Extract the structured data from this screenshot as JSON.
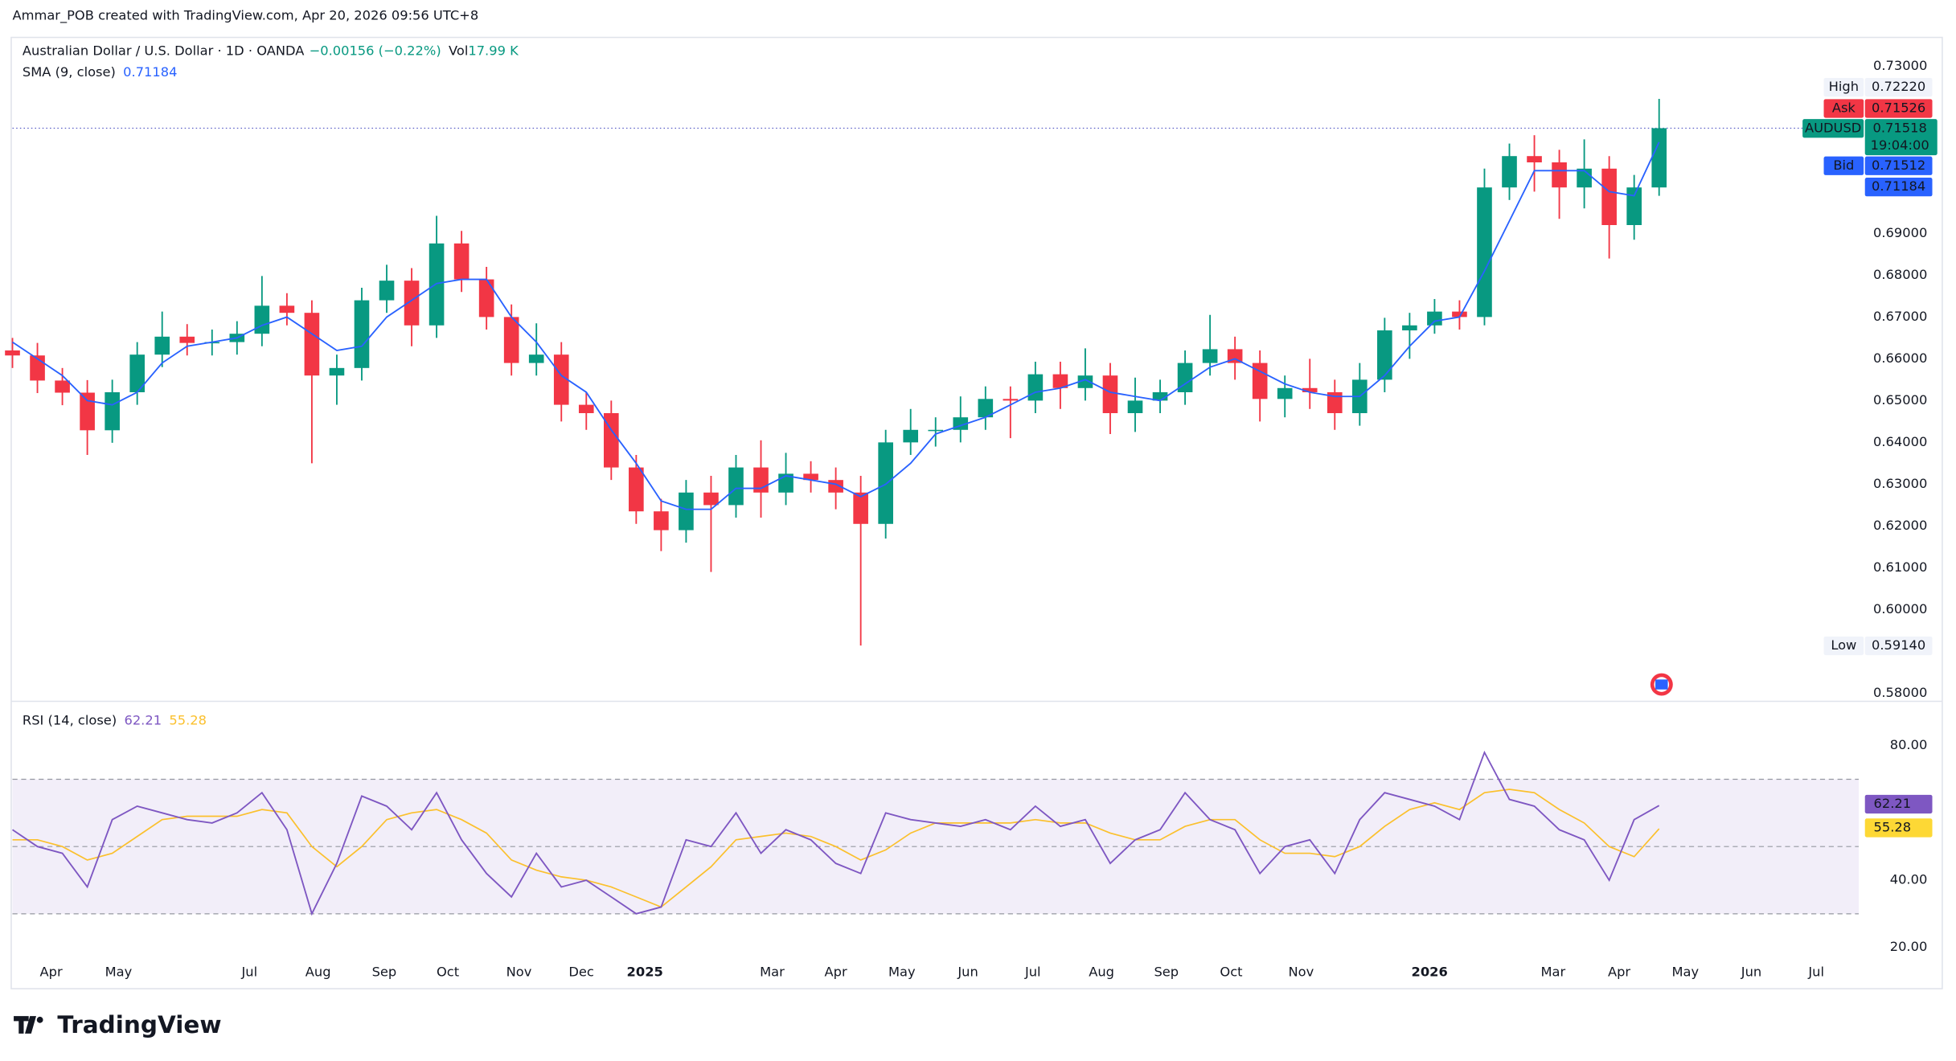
{
  "header": "Ammar_POB created with TradingView.com, Apr 20, 2026 09:56 UTC+8",
  "logo": "TradingView",
  "chart_data": [
    {
      "type": "candlestick",
      "title": "Australian Dollar / U.S. Dollar · 1D · OANDA",
      "change": "−0.00156 (−0.22%)",
      "volume_name": "Vol",
      "volume": "17.99 K",
      "up_color": "#089981",
      "down_color": "#f23645",
      "open": [
        0.662,
        0.6608,
        0.6548,
        0.6519,
        0.6429,
        0.652,
        0.661,
        0.6653,
        0.6638,
        0.664,
        0.666,
        0.6727,
        0.671,
        0.656,
        0.6578,
        0.674,
        0.6787,
        0.668,
        0.6876,
        0.679,
        0.67,
        0.659,
        0.661,
        0.649,
        0.647,
        0.634,
        0.6235,
        0.619,
        0.628,
        0.625,
        0.634,
        0.628,
        0.6325,
        0.631,
        0.628,
        0.6205,
        0.64,
        0.643,
        0.643,
        0.646,
        0.6504,
        0.65,
        0.6563,
        0.653,
        0.656,
        0.647,
        0.65,
        0.652,
        0.659,
        0.6623,
        0.659,
        0.6504,
        0.653,
        0.652,
        0.647,
        0.655,
        0.6668,
        0.668,
        0.6713,
        0.67,
        0.701,
        0.7085,
        0.707,
        0.701,
        0.7055,
        0.692,
        0.701
      ],
      "high": [
        0.665,
        0.6638,
        0.6578,
        0.6549,
        0.655,
        0.664,
        0.6713,
        0.6683,
        0.667,
        0.669,
        0.6798,
        0.6757,
        0.674,
        0.661,
        0.677,
        0.6825,
        0.6817,
        0.6942,
        0.6906,
        0.682,
        0.673,
        0.6685,
        0.664,
        0.652,
        0.65,
        0.637,
        0.6265,
        0.631,
        0.632,
        0.637,
        0.6405,
        0.6375,
        0.6355,
        0.634,
        0.632,
        0.643,
        0.648,
        0.646,
        0.651,
        0.6534,
        0.6534,
        0.6593,
        0.6593,
        0.6625,
        0.659,
        0.6555,
        0.655,
        0.662,
        0.6705,
        0.6653,
        0.662,
        0.656,
        0.66,
        0.655,
        0.659,
        0.6698,
        0.671,
        0.6743,
        0.674,
        0.7055,
        0.7115,
        0.7135,
        0.71,
        0.7125,
        0.7085,
        0.704,
        0.7222
      ],
      "low": [
        0.6578,
        0.6518,
        0.6489,
        0.637,
        0.6399,
        0.649,
        0.658,
        0.6608,
        0.6608,
        0.661,
        0.663,
        0.668,
        0.635,
        0.649,
        0.6548,
        0.671,
        0.663,
        0.665,
        0.676,
        0.667,
        0.656,
        0.656,
        0.645,
        0.643,
        0.631,
        0.6205,
        0.614,
        0.616,
        0.609,
        0.622,
        0.622,
        0.625,
        0.628,
        0.624,
        0.5914,
        0.617,
        0.637,
        0.639,
        0.64,
        0.643,
        0.641,
        0.647,
        0.648,
        0.65,
        0.642,
        0.6425,
        0.647,
        0.649,
        0.656,
        0.655,
        0.645,
        0.646,
        0.648,
        0.643,
        0.644,
        0.652,
        0.66,
        0.666,
        0.667,
        0.668,
        0.698,
        0.7,
        0.6935,
        0.696,
        0.684,
        0.6885,
        0.699
      ],
      "close": [
        0.6608,
        0.6548,
        0.6519,
        0.6429,
        0.652,
        0.661,
        0.6653,
        0.6638,
        0.664,
        0.666,
        0.6727,
        0.671,
        0.656,
        0.6578,
        0.674,
        0.6787,
        0.668,
        0.6876,
        0.679,
        0.67,
        0.659,
        0.661,
        0.649,
        0.647,
        0.634,
        0.6235,
        0.619,
        0.628,
        0.625,
        0.634,
        0.628,
        0.6325,
        0.631,
        0.628,
        0.6205,
        0.64,
        0.643,
        0.643,
        0.646,
        0.6504,
        0.65,
        0.6563,
        0.653,
        0.656,
        0.647,
        0.65,
        0.652,
        0.659,
        0.6623,
        0.659,
        0.6504,
        0.653,
        0.652,
        0.647,
        0.655,
        0.6668,
        0.668,
        0.6713,
        0.67,
        0.701,
        0.7085,
        0.707,
        0.701,
        0.7055,
        0.692,
        0.701,
        0.71518
      ],
      "sma": {
        "name": "SMA (9, close)",
        "color": "#2962ff",
        "values": [
          0.664,
          0.66,
          0.656,
          0.65,
          0.649,
          0.652,
          0.659,
          0.663,
          0.664,
          0.665,
          0.668,
          0.67,
          0.666,
          0.662,
          0.663,
          0.67,
          0.674,
          0.678,
          0.679,
          0.679,
          0.67,
          0.664,
          0.656,
          0.652,
          0.643,
          0.635,
          0.626,
          0.624,
          0.624,
          0.629,
          0.629,
          0.632,
          0.631,
          0.63,
          0.627,
          0.63,
          0.635,
          0.642,
          0.644,
          0.646,
          0.649,
          0.652,
          0.653,
          0.655,
          0.652,
          0.651,
          0.65,
          0.654,
          0.658,
          0.66,
          0.657,
          0.654,
          0.652,
          0.651,
          0.651,
          0.656,
          0.663,
          0.669,
          0.67,
          0.681,
          0.693,
          0.705,
          0.705,
          0.705,
          0.7,
          0.699,
          0.71184
        ]
      },
      "symbol": "AUDUSD",
      "countdown": "19:04:00",
      "markers": [
        {
          "name": "High",
          "value": 0.7222,
          "value_label": "0.72220"
        },
        {
          "name": "Ask",
          "value": 0.71526
        },
        {
          "name": "Bid",
          "value": 0.71512
        },
        {
          "name": "Low",
          "value": 0.5914,
          "value_label": "0.59140"
        }
      ],
      "ylim": [
        0.5782,
        0.7369
      ],
      "yticks": [
        {
          "value": 0.73,
          "label": "0.73000"
        },
        {
          "value": 0.69,
          "label": "0.69000"
        },
        {
          "value": 0.68,
          "label": "0.68000"
        },
        {
          "value": 0.67,
          "label": "0.67000"
        },
        {
          "value": 0.66,
          "label": "0.66000"
        },
        {
          "value": 0.65,
          "label": "0.65000"
        },
        {
          "value": 0.64,
          "label": "0.64000"
        },
        {
          "value": 0.63,
          "label": "0.63000"
        },
        {
          "value": 0.62,
          "label": "0.62000"
        },
        {
          "value": 0.61,
          "label": "0.61000"
        },
        {
          "value": 0.6,
          "label": "0.60000"
        },
        {
          "value": 0.58,
          "label": "0.58000"
        }
      ]
    },
    {
      "type": "rsi",
      "title": "RSI (14, close)",
      "color": "#7e57c2",
      "values": [
        55,
        50,
        48,
        38,
        58,
        62,
        60,
        58,
        57,
        60,
        66,
        55,
        30,
        45,
        65,
        62,
        55,
        66,
        52,
        42,
        35,
        48,
        38,
        40,
        35,
        30,
        32,
        52,
        50,
        60,
        48,
        55,
        52,
        45,
        42,
        60,
        58,
        57,
        56,
        58,
        55,
        62,
        56,
        58,
        45,
        52,
        55,
        66,
        58,
        55,
        42,
        50,
        52,
        42,
        58,
        66,
        64,
        62,
        58,
        78,
        64,
        62,
        55,
        52,
        40,
        58,
        62.21
      ],
      "ma": {
        "color": "#fbc02d",
        "values": [
          52,
          52,
          50,
          46,
          48,
          53,
          58,
          59,
          59,
          59,
          61,
          60,
          50,
          44,
          50,
          58,
          60,
          61,
          58,
          54,
          46,
          43,
          41,
          40,
          38,
          35,
          32,
          38,
          44,
          52,
          53,
          54,
          53,
          50,
          46,
          49,
          54,
          57,
          57,
          57,
          57,
          58,
          57,
          57,
          54,
          52,
          52,
          56,
          58,
          58,
          52,
          48,
          48,
          47,
          50,
          56,
          61,
          63,
          61,
          66,
          67,
          66,
          61,
          57,
          50,
          47,
          55.28
        ]
      },
      "bands": [
        70,
        50,
        30
      ],
      "ylim": [
        17,
        93
      ],
      "yticks": [
        {
          "value": 80,
          "label": "80.00"
        },
        {
          "value": 40,
          "label": "40.00"
        },
        {
          "value": 20,
          "label": "20.00"
        }
      ],
      "xlim": [
        0,
        74
      ],
      "xticks": [
        {
          "value": 1.55,
          "label": "Apr"
        },
        {
          "value": 4.25,
          "label": "May"
        },
        {
          "value": 9.5,
          "label": "Jul"
        },
        {
          "value": 12.25,
          "label": "Aug"
        },
        {
          "value": 14.9,
          "label": "Sep"
        },
        {
          "value": 17.45,
          "label": "Oct"
        },
        {
          "value": 20.3,
          "label": "Nov"
        },
        {
          "value": 22.8,
          "label": "Dec"
        },
        {
          "value": 25.35,
          "label": "2025"
        },
        {
          "value": 30.45,
          "label": "Mar"
        },
        {
          "value": 33,
          "label": "Apr"
        },
        {
          "value": 35.65,
          "label": "May"
        },
        {
          "value": 38.3,
          "label": "Jun"
        },
        {
          "value": 40.9,
          "label": "Jul"
        },
        {
          "value": 43.65,
          "label": "Aug"
        },
        {
          "value": 46.25,
          "label": "Sep"
        },
        {
          "value": 48.85,
          "label": "Oct"
        },
        {
          "value": 51.65,
          "label": "Nov"
        },
        {
          "value": 56.8,
          "label": "2026"
        },
        {
          "value": 61.75,
          "label": "Mar"
        },
        {
          "value": 64.4,
          "label": "Apr"
        },
        {
          "value": 67.05,
          "label": "May"
        },
        {
          "value": 69.7,
          "label": "Jun"
        },
        {
          "value": 72.3,
          "label": "Jul"
        }
      ]
    }
  ]
}
